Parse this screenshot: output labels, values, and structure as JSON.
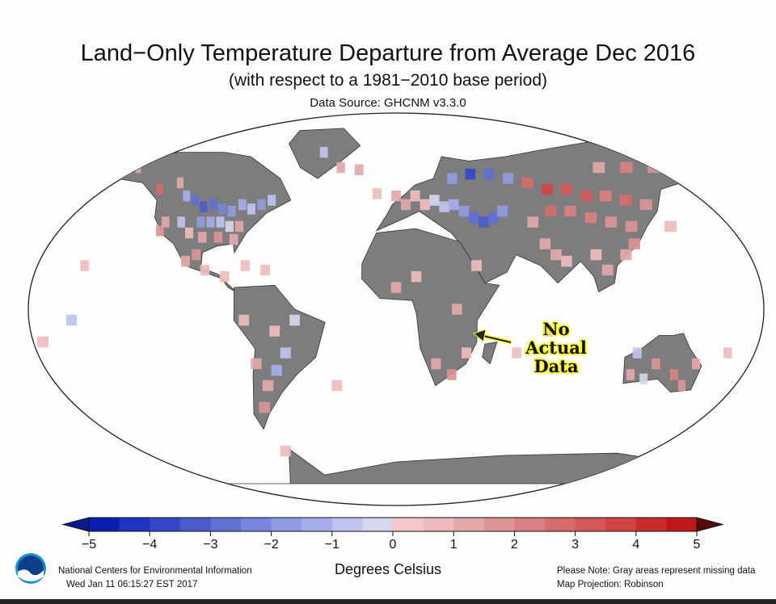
{
  "header": {
    "title": "Land−Only Temperature Departure from Average Dec 2016",
    "subtitle": "(with respect to a 1981−2010 base period)",
    "source": "Data Source: GHCNM v3.3.0"
  },
  "annotation": {
    "lines": [
      "No",
      "Actual",
      "Data"
    ]
  },
  "legend": {
    "units": "Degrees Celsius",
    "ticks": [
      "−5",
      "−4",
      "−3",
      "−2",
      "−1",
      "0",
      "1",
      "2",
      "3",
      "4",
      "5"
    ],
    "range": [
      -5,
      5
    ],
    "step": 0.5,
    "colors": [
      "#0b1fae",
      "#1e35c0",
      "#3346c6",
      "#4a5ccc",
      "#6070d4",
      "#7686dc",
      "#8f9be2",
      "#a6aeea",
      "#bec3f0",
      "#d6d7ee",
      "#f7c6c6",
      "#eebcbc",
      "#e4a8a8",
      "#dc9494",
      "#d98080",
      "#d66b6b",
      "#d45858",
      "#d14444",
      "#c92a2a",
      "#c01818"
    ],
    "under_color": "#0a1a8c",
    "over_color": "#5a0a0a",
    "missing_color": "#7d7d7d"
  },
  "footer": {
    "org": "National Centers for Environmental Information",
    "timestamp": "Wed Jan 11 06:15:27 EST 2017",
    "note": "Please Note: Gray areas represent missing data",
    "projection": "Map Projection: Robinson",
    "logo_text": "NOAA"
  },
  "chart_data": {
    "type": "heatmap",
    "title": "Land-Only Temperature Departure from Average Dec 2016",
    "value_units": "Degrees Celsius",
    "cells_lon_lat_value": [
      [
        -160,
        67,
        1.5
      ],
      [
        -150,
        62,
        2
      ],
      [
        -140,
        65,
        1
      ],
      [
        -125,
        55,
        2.5
      ],
      [
        -115,
        58,
        1
      ],
      [
        -110,
        52,
        -1.5
      ],
      [
        -105,
        50,
        -3
      ],
      [
        -100,
        47,
        -3.5
      ],
      [
        -95,
        48,
        -3
      ],
      [
        -90,
        46,
        -2.5
      ],
      [
        -85,
        45,
        -2
      ],
      [
        -80,
        48,
        -1.5
      ],
      [
        -75,
        46,
        -1
      ],
      [
        -70,
        48,
        -2
      ],
      [
        -65,
        50,
        -1
      ],
      [
        -100,
        40,
        -2
      ],
      [
        -95,
        40,
        -1.5
      ],
      [
        -90,
        40,
        -1
      ],
      [
        -85,
        38,
        -0.5
      ],
      [
        -80,
        38,
        1
      ],
      [
        -110,
        40,
        -1
      ],
      [
        -118,
        40,
        1
      ],
      [
        -120,
        36,
        1.5
      ],
      [
        -105,
        35,
        0.5
      ],
      [
        -98,
        33,
        1
      ],
      [
        -90,
        33,
        1.5
      ],
      [
        -82,
        32,
        1
      ],
      [
        -100,
        25,
        1.5
      ],
      [
        -105,
        22,
        1
      ],
      [
        -95,
        18,
        0.5
      ],
      [
        -85,
        15,
        0.5
      ],
      [
        -75,
        20,
        0.5
      ],
      [
        -65,
        18,
        0.5
      ],
      [
        -40,
        72,
        -1
      ],
      [
        -30,
        65,
        1
      ],
      [
        -20,
        64,
        1
      ],
      [
        -10,
        53,
        0.5
      ],
      [
        0,
        52,
        1
      ],
      [
        5,
        48,
        1
      ],
      [
        10,
        52,
        0.5
      ],
      [
        15,
        48,
        0.5
      ],
      [
        20,
        50,
        -0.5
      ],
      [
        25,
        47,
        -1
      ],
      [
        30,
        48,
        -1.5
      ],
      [
        35,
        45,
        -2
      ],
      [
        40,
        42,
        -3
      ],
      [
        45,
        40,
        -3.5
      ],
      [
        50,
        42,
        -3
      ],
      [
        55,
        45,
        -2
      ],
      [
        30,
        60,
        -2
      ],
      [
        40,
        62,
        -4
      ],
      [
        50,
        62,
        -3
      ],
      [
        60,
        60,
        -2
      ],
      [
        70,
        58,
        2.5
      ],
      [
        80,
        55,
        3.5
      ],
      [
        90,
        55,
        3
      ],
      [
        100,
        52,
        3
      ],
      [
        110,
        52,
        2
      ],
      [
        120,
        50,
        2.5
      ],
      [
        130,
        48,
        1.5
      ],
      [
        80,
        45,
        2.5
      ],
      [
        90,
        45,
        2
      ],
      [
        100,
        42,
        2
      ],
      [
        110,
        40,
        1.5
      ],
      [
        120,
        38,
        1.5
      ],
      [
        70,
        40,
        1
      ],
      [
        75,
        30,
        1
      ],
      [
        80,
        25,
        1
      ],
      [
        85,
        22,
        0.5
      ],
      [
        100,
        25,
        0.5
      ],
      [
        105,
        18,
        1
      ],
      [
        115,
        25,
        1
      ],
      [
        120,
        30,
        1.5
      ],
      [
        140,
        38,
        0.5
      ],
      [
        110,
        65,
        1
      ],
      [
        125,
        65,
        2
      ],
      [
        140,
        65,
        1.5
      ],
      [
        160,
        65,
        4
      ],
      [
        170,
        64,
        1.5
      ],
      [
        40,
        20,
        0.5
      ],
      [
        10,
        15,
        0.5
      ],
      [
        0,
        10,
        1
      ],
      [
        30,
        0,
        1
      ],
      [
        20,
        -25,
        1
      ],
      [
        28,
        -30,
        1.5
      ],
      [
        35,
        -20,
        0.5
      ],
      [
        -60,
        -10,
        0.5
      ],
      [
        -55,
        -20,
        -1
      ],
      [
        -60,
        -28,
        -1.5
      ],
      [
        -65,
        -35,
        1
      ],
      [
        -68,
        -45,
        1.5
      ],
      [
        -70,
        -25,
        1
      ],
      [
        -50,
        -5,
        -0.5
      ],
      [
        -75,
        -5,
        0.5
      ],
      [
        120,
        -20,
        -1
      ],
      [
        130,
        -25,
        1.5
      ],
      [
        140,
        -30,
        2
      ],
      [
        145,
        -35,
        1.5
      ],
      [
        150,
        -25,
        1
      ],
      [
        118,
        -30,
        1
      ],
      [
        125,
        -32,
        -0.5
      ],
      [
        175,
        -40,
        1.5
      ],
      [
        -175,
        -15,
        0.5
      ],
      [
        -155,
        20,
        0.5
      ],
      [
        -160,
        -5,
        -1
      ],
      [
        165,
        -20,
        0.5
      ],
      [
        60,
        -20,
        0.5
      ],
      [
        75,
        -10,
        0.5
      ],
      [
        -30,
        -35,
        0.5
      ],
      [
        -60,
        -65,
        0.5
      ]
    ]
  }
}
